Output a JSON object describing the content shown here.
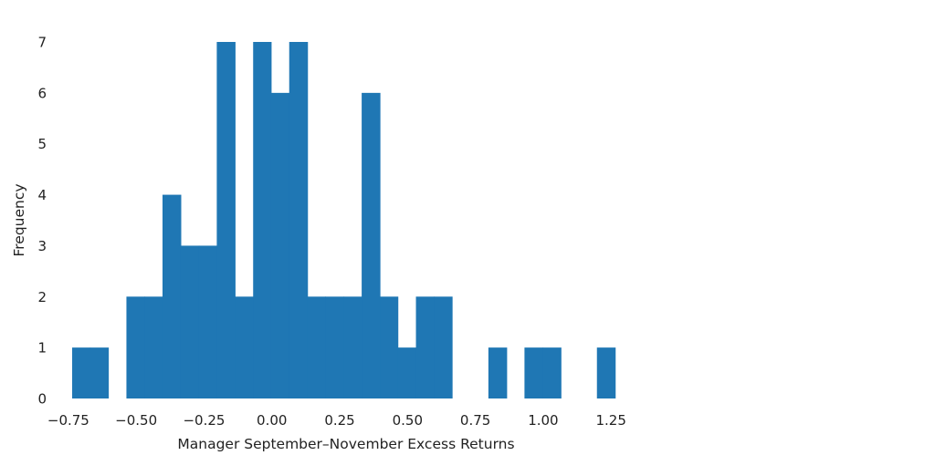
{
  "chart_data": {
    "type": "bar",
    "title": "",
    "xlabel": "Manager September–November Excess Returns",
    "ylabel": "Frequency",
    "xlim": [
      -0.8,
      1.32
    ],
    "ylim": [
      0,
      7
    ],
    "x_ticks": [
      -0.75,
      -0.5,
      -0.25,
      0.0,
      0.25,
      0.5,
      0.75,
      1.0,
      1.25
    ],
    "x_tick_labels": [
      "−0.75",
      "−0.50",
      "−0.25",
      "0.00",
      "0.25",
      "0.50",
      "0.75",
      "1.00",
      "1.25"
    ],
    "y_ticks": [
      0,
      1,
      2,
      3,
      4,
      5,
      6,
      7
    ],
    "y_tick_labels": [
      "0",
      "1",
      "2",
      "3",
      "4",
      "5",
      "6",
      "7"
    ],
    "grid": false,
    "bar_color": "#1f77b4",
    "bins": [
      {
        "x0": -0.736,
        "x1": -0.67,
        "value": 1
      },
      {
        "x0": -0.67,
        "x1": -0.603,
        "value": 1
      },
      {
        "x0": -0.603,
        "x1": -0.536,
        "value": 0
      },
      {
        "x0": -0.536,
        "x1": -0.47,
        "value": 2
      },
      {
        "x0": -0.47,
        "x1": -0.403,
        "value": 2
      },
      {
        "x0": -0.403,
        "x1": -0.336,
        "value": 4
      },
      {
        "x0": -0.336,
        "x1": -0.269,
        "value": 3
      },
      {
        "x0": -0.269,
        "x1": -0.203,
        "value": 3
      },
      {
        "x0": -0.203,
        "x1": -0.136,
        "value": 7
      },
      {
        "x0": -0.136,
        "x1": -0.069,
        "value": 2
      },
      {
        "x0": -0.069,
        "x1": -0.003,
        "value": 7
      },
      {
        "x0": -0.003,
        "x1": 0.064,
        "value": 6
      },
      {
        "x0": 0.064,
        "x1": 0.131,
        "value": 7
      },
      {
        "x0": 0.131,
        "x1": 0.197,
        "value": 2
      },
      {
        "x0": 0.197,
        "x1": 0.264,
        "value": 2
      },
      {
        "x0": 0.264,
        "x1": 0.331,
        "value": 2
      },
      {
        "x0": 0.331,
        "x1": 0.398,
        "value": 6
      },
      {
        "x0": 0.398,
        "x1": 0.464,
        "value": 2
      },
      {
        "x0": 0.464,
        "x1": 0.531,
        "value": 1
      },
      {
        "x0": 0.531,
        "x1": 0.598,
        "value": 2
      },
      {
        "x0": 0.598,
        "x1": 0.664,
        "value": 2
      },
      {
        "x0": 0.664,
        "x1": 0.731,
        "value": 0
      },
      {
        "x0": 0.731,
        "x1": 0.798,
        "value": 0
      },
      {
        "x0": 0.798,
        "x1": 0.865,
        "value": 1
      },
      {
        "x0": 0.865,
        "x1": 0.931,
        "value": 0
      },
      {
        "x0": 0.931,
        "x1": 0.998,
        "value": 1
      },
      {
        "x0": 0.998,
        "x1": 1.065,
        "value": 1
      },
      {
        "x0": 1.065,
        "x1": 1.131,
        "value": 0
      },
      {
        "x0": 1.131,
        "x1": 1.198,
        "value": 0
      },
      {
        "x0": 1.198,
        "x1": 1.265,
        "value": 1
      }
    ]
  }
}
